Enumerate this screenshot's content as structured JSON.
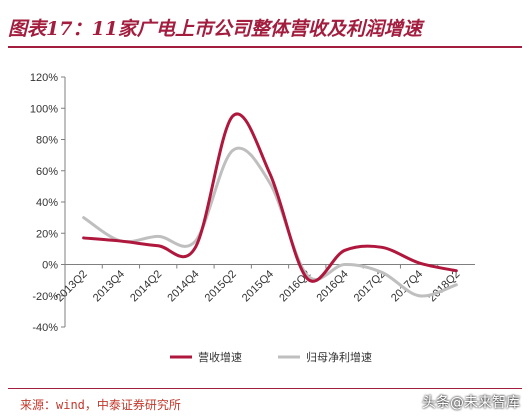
{
  "header": {
    "title": "图表17：11家广电上市公司整体营收及利润增速"
  },
  "footer": {
    "source": "来源：wind，中泰证券研究所",
    "watermark": "头条@未来智库"
  },
  "colors": {
    "revenue": "#b0173d",
    "profit": "#bfbfbf",
    "brand": "#a31d3f"
  },
  "chart_data": {
    "type": "line",
    "categories": [
      "2013Q2",
      "2013Q4",
      "2014Q2",
      "2014Q4",
      "2015Q2",
      "2015Q4",
      "2016Q2",
      "2016Q4",
      "2017Q2",
      "2017Q4",
      "2018Q2"
    ],
    "series": [
      {
        "name": "营收增速",
        "values": [
          17,
          15,
          12,
          11,
          95,
          58,
          -9,
          9,
          11,
          1,
          -4
        ]
      },
      {
        "name": "归母净利增速",
        "values": [
          30,
          15,
          18,
          15,
          73,
          52,
          -7,
          0,
          -5,
          -20,
          -13
        ]
      }
    ],
    "ylim": [
      -40,
      120
    ],
    "yticks": [
      "-40%",
      "-20%",
      "0%",
      "20%",
      "40%",
      "60%",
      "80%",
      "100%",
      "120%"
    ],
    "ytick_values": [
      -40,
      -20,
      0,
      20,
      40,
      60,
      80,
      100,
      120
    ],
    "xlabel": "",
    "ylabel": "",
    "grid": false,
    "legend": "bottom"
  }
}
